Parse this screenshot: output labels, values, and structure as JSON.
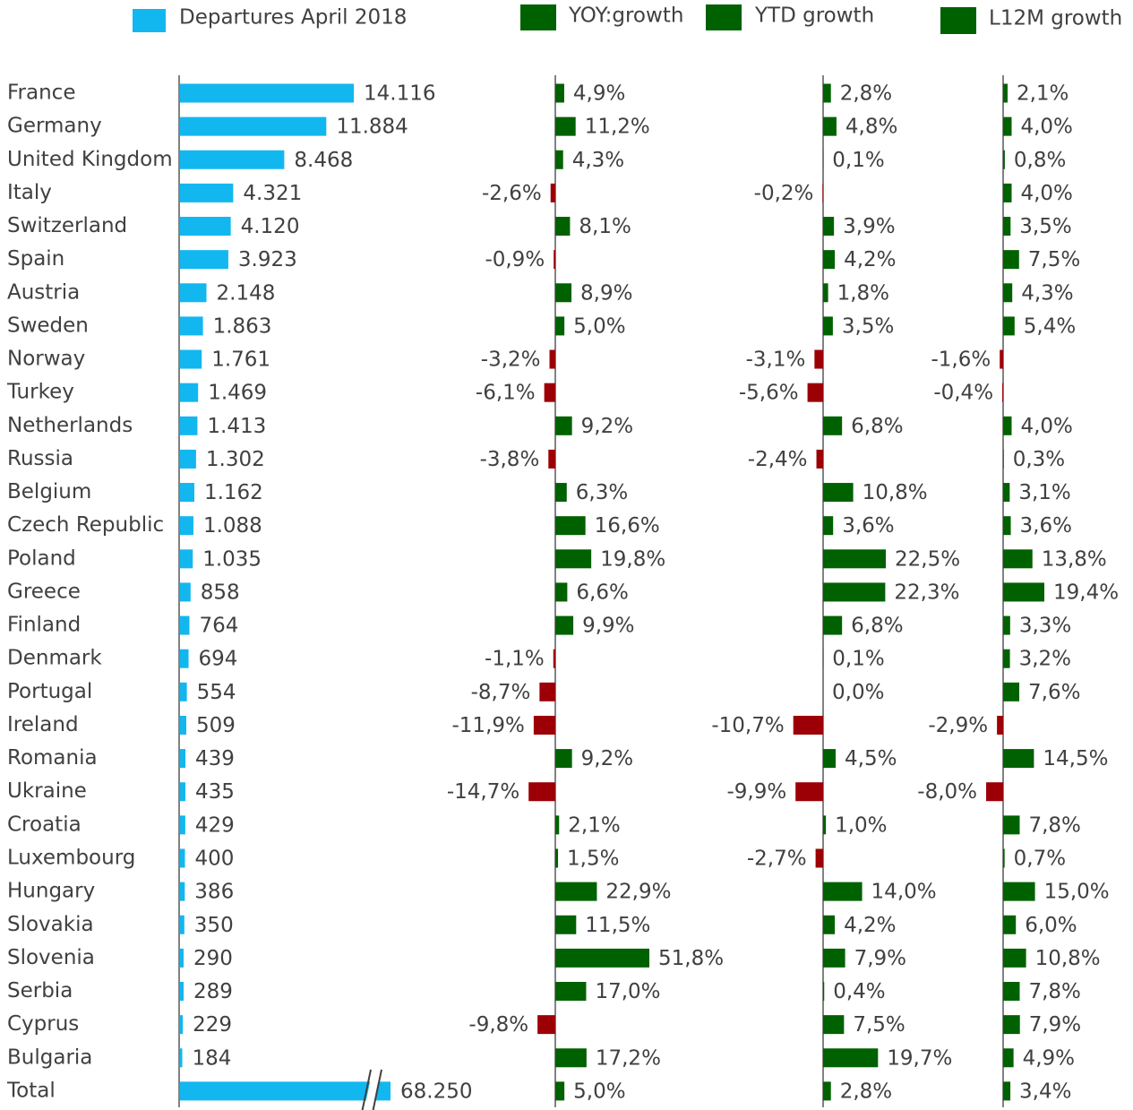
{
  "chart_data": {
    "type": "bar",
    "categories": [
      "France",
      "Germany",
      "United Kingdom",
      "Italy",
      "Switzerland",
      "Spain",
      "Austria",
      "Sweden",
      "Norway",
      "Turkey",
      "Netherlands",
      "Russia",
      "Belgium",
      "Czech Republic",
      "Poland",
      "Greece",
      "Finland",
      "Denmark",
      "Portugal",
      "Ireland",
      "Romania",
      "Ukraine",
      "Croatia",
      "Luxembourg",
      "Hungary",
      "Slovakia",
      "Slovenia",
      "Serbia",
      "Cyprus",
      "Bulgaria",
      "Total"
    ],
    "legend": [
      {
        "label": "Departures April 2018",
        "color": "#12B7F0"
      },
      {
        "label": "YOY:growth",
        "color": "#006100"
      },
      {
        "label": "YTD growth",
        "color": "#006100"
      },
      {
        "label": "L12M growth",
        "color": "#006100"
      }
    ],
    "series": [
      {
        "name": "Departures April 2018",
        "color": "#12B7F0",
        "values": [
          14116,
          11884,
          8468,
          4321,
          4120,
          3923,
          2148,
          1863,
          1761,
          1469,
          1413,
          1302,
          1162,
          1088,
          1035,
          858,
          764,
          694,
          554,
          509,
          439,
          435,
          429,
          400,
          386,
          350,
          290,
          289,
          229,
          184,
          68250
        ],
        "labels": [
          "14.116",
          "11.884",
          "8.468",
          "4.321",
          "4.120",
          "3.923",
          "2.148",
          "1.863",
          "1.761",
          "1.469",
          "1.413",
          "1.302",
          "1.162",
          "1.088",
          "1.035",
          "858",
          "764",
          "694",
          "554",
          "509",
          "439",
          "435",
          "429",
          "400",
          "386",
          "350",
          "290",
          "289",
          "229",
          "184",
          "68.250"
        ],
        "axis_break": "Total"
      },
      {
        "name": "YOY:growth",
        "values": [
          4.9,
          11.2,
          4.3,
          -2.6,
          8.1,
          -0.9,
          8.9,
          5.0,
          -3.2,
          -6.1,
          9.2,
          -3.8,
          6.3,
          16.6,
          19.8,
          6.6,
          9.9,
          -1.1,
          -8.7,
          -11.9,
          9.2,
          -14.7,
          2.1,
          1.5,
          22.9,
          11.5,
          51.8,
          17.0,
          -9.8,
          17.2,
          5.0
        ],
        "labels": [
          "4,9%",
          "11,2%",
          "4,3%",
          "-2,6%",
          "8,1%",
          "-0,9%",
          "8,9%",
          "5,0%",
          "-3,2%",
          "-6,1%",
          "9,2%",
          "-3,8%",
          "6,3%",
          "16,6%",
          "19,8%",
          "6,6%",
          "9,9%",
          "-1,1%",
          "-8,7%",
          "-11,9%",
          "9,2%",
          "-14,7%",
          "2,1%",
          "1,5%",
          "22,9%",
          "11,5%",
          "51,8%",
          "17,0%",
          "-9,8%",
          "17,2%",
          "5,0%"
        ]
      },
      {
        "name": "YTD growth",
        "values": [
          2.8,
          4.8,
          0.1,
          -0.2,
          3.9,
          4.2,
          1.8,
          3.5,
          -3.1,
          -5.6,
          6.8,
          -2.4,
          10.8,
          3.6,
          22.5,
          22.3,
          6.8,
          0.1,
          0.0,
          -10.7,
          4.5,
          -9.9,
          1.0,
          -2.7,
          14.0,
          4.2,
          7.9,
          0.4,
          7.5,
          19.7,
          2.8
        ],
        "labels": [
          "2,8%",
          "4,8%",
          "0,1%",
          "-0,2%",
          "3,9%",
          "4,2%",
          "1,8%",
          "3,5%",
          "-3,1%",
          "-5,6%",
          "6,8%",
          "-2,4%",
          "10,8%",
          "3,6%",
          "22,5%",
          "22,3%",
          "6,8%",
          "0,1%",
          "0,0%",
          "-10,7%",
          "4,5%",
          "-9,9%",
          "1,0%",
          "-2,7%",
          "14,0%",
          "4,2%",
          "7,9%",
          "0,4%",
          "7,5%",
          "19,7%",
          "2,8%"
        ]
      },
      {
        "name": "L12M growth",
        "values": [
          2.1,
          4.0,
          0.8,
          4.0,
          3.5,
          7.5,
          4.3,
          5.4,
          -1.6,
          -0.4,
          4.0,
          0.3,
          3.1,
          3.6,
          13.8,
          19.4,
          3.3,
          3.2,
          7.6,
          -2.9,
          14.5,
          -8.0,
          7.8,
          0.7,
          15.0,
          6.0,
          10.8,
          7.8,
          7.9,
          4.9,
          3.4
        ],
        "labels": [
          "2,1%",
          "4,0%",
          "0,8%",
          "4,0%",
          "3,5%",
          "7,5%",
          "4,3%",
          "5,4%",
          "-1,6%",
          "-0,4%",
          "4,0%",
          "0,3%",
          "3,1%",
          "3,6%",
          "13,8%",
          "19,4%",
          "3,3%",
          "3,2%",
          "7,6%",
          "-2,9%",
          "14,5%",
          "-8,0%",
          "7,8%",
          "0,7%",
          "15,0%",
          "6,0%",
          "10,8%",
          "7,8%",
          "7,9%",
          "4,9%",
          "3,4%"
        ]
      }
    ],
    "positive_color": "#006100",
    "negative_color": "#9C0006",
    "grid": false,
    "legend_position": "top"
  }
}
